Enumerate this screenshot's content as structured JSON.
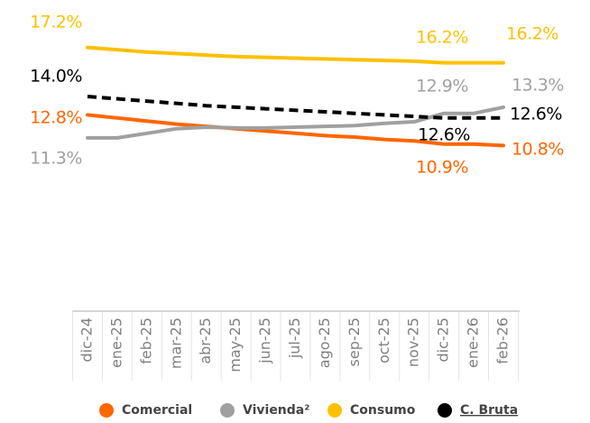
{
  "chart_data": {
    "type": "line",
    "categories": [
      "dic-24",
      "ene-25",
      "feb-25",
      "mar-25",
      "abr-25",
      "may-25",
      "jun-25",
      "jul-25",
      "ago-25",
      "sep-25",
      "oct-25",
      "nov-25",
      "dic-25",
      "ene-26",
      "feb-26"
    ],
    "ylim": [
      0,
      20
    ],
    "series": [
      {
        "name": "Comercial",
        "color": "#ff6600",
        "dashed": false,
        "values": [
          12.8,
          12.6,
          12.4,
          12.2,
          12.05,
          11.9,
          11.75,
          11.6,
          11.45,
          11.35,
          11.2,
          11.1,
          10.9,
          10.9,
          10.8
        ],
        "value_labels": [
          "12.8%",
          null,
          null,
          null,
          null,
          null,
          null,
          null,
          null,
          null,
          null,
          null,
          "10.9%",
          null,
          "10.8%"
        ]
      },
      {
        "name": "Vivienda²",
        "color": "#a0a0a0",
        "dashed": false,
        "values": [
          11.3,
          11.3,
          11.6,
          11.9,
          12.0,
          11.95,
          11.95,
          12.0,
          12.05,
          12.1,
          12.25,
          12.35,
          12.9,
          12.9,
          13.3
        ],
        "value_labels": [
          "11.3%",
          null,
          null,
          null,
          null,
          null,
          null,
          null,
          null,
          null,
          null,
          null,
          "12.9%",
          null,
          "13.3%"
        ]
      },
      {
        "name": "Consumo",
        "color": "#ffc000",
        "dashed": false,
        "values": [
          17.2,
          17.05,
          16.9,
          16.8,
          16.7,
          16.6,
          16.55,
          16.5,
          16.45,
          16.4,
          16.35,
          16.3,
          16.2,
          16.2,
          16.2
        ],
        "value_labels": [
          "17.2%",
          null,
          null,
          null,
          null,
          null,
          null,
          null,
          null,
          null,
          null,
          null,
          "16.2%",
          null,
          "16.2%"
        ]
      },
      {
        "name": "C. Bruta",
        "color": "#000000",
        "dashed": true,
        "values": [
          14.0,
          13.85,
          13.7,
          13.55,
          13.4,
          13.3,
          13.2,
          13.1,
          13.0,
          12.9,
          12.8,
          12.7,
          12.6,
          12.6,
          12.6
        ],
        "value_labels": [
          "14.0%",
          null,
          null,
          null,
          null,
          null,
          null,
          null,
          null,
          null,
          null,
          null,
          "12.6%",
          null,
          "12.6%"
        ]
      }
    ]
  }
}
